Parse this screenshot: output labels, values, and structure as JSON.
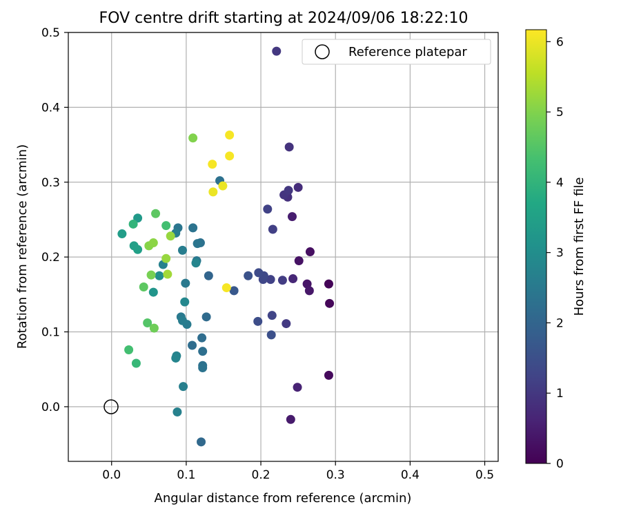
{
  "chart_data": {
    "type": "scatter",
    "title": "FOV centre drift starting at 2024/09/06 18:22:10",
    "xlabel": "Angular distance from reference (arcmin)",
    "ylabel": "Rotation from reference (arcmin)",
    "xlim": [
      -0.058,
      0.518
    ],
    "ylim": [
      -0.073,
      0.5
    ],
    "xticks": [
      0.0,
      0.1,
      0.2,
      0.3,
      0.4,
      0.5
    ],
    "xtick_labels": [
      "0.0",
      "0.1",
      "0.2",
      "0.3",
      "0.4",
      "0.5"
    ],
    "yticks": [
      0.0,
      0.1,
      0.2,
      0.3,
      0.4,
      0.5
    ],
    "ytick_labels": [
      "0.0",
      "0.1",
      "0.2",
      "0.3",
      "0.4",
      "0.5"
    ],
    "grid": true,
    "legend_position": "top-right",
    "legend": [
      {
        "label": "Reference platepar",
        "marker": "open-circle"
      }
    ],
    "reference_point": {
      "x": 0.0,
      "y": 0.0
    },
    "colorbar": {
      "label": "Hours from first FF file",
      "range": [
        0,
        6.17
      ],
      "ticks": [
        0,
        1,
        2,
        3,
        4,
        5,
        6
      ],
      "tick_labels": [
        "0",
        "1",
        "2",
        "3",
        "4",
        "5",
        "6"
      ],
      "colormap": "viridis"
    },
    "points": [
      {
        "x": 0.291,
        "y": 0.164,
        "h": 0.05
      },
      {
        "x": 0.292,
        "y": 0.138,
        "h": 0.1
      },
      {
        "x": 0.291,
        "y": 0.042,
        "h": 0.15
      },
      {
        "x": 0.266,
        "y": 0.207,
        "h": 0.25
      },
      {
        "x": 0.251,
        "y": 0.195,
        "h": 0.3
      },
      {
        "x": 0.262,
        "y": 0.164,
        "h": 0.35
      },
      {
        "x": 0.265,
        "y": 0.155,
        "h": 0.4
      },
      {
        "x": 0.24,
        "y": -0.017,
        "h": 0.45
      },
      {
        "x": 0.242,
        "y": 0.254,
        "h": 0.5
      },
      {
        "x": 0.249,
        "y": 0.026,
        "h": 0.6
      },
      {
        "x": 0.243,
        "y": 0.171,
        "h": 0.7
      },
      {
        "x": 0.25,
        "y": 0.293,
        "h": 0.8
      },
      {
        "x": 0.236,
        "y": 0.28,
        "h": 0.85
      },
      {
        "x": 0.238,
        "y": 0.347,
        "h": 0.9
      },
      {
        "x": 0.231,
        "y": 0.283,
        "h": 0.95
      },
      {
        "x": 0.237,
        "y": 0.289,
        "h": 1.0
      },
      {
        "x": 0.221,
        "y": 0.475,
        "h": 1.0
      },
      {
        "x": 0.234,
        "y": 0.111,
        "h": 1.05
      },
      {
        "x": 0.229,
        "y": 0.169,
        "h": 1.1
      },
      {
        "x": 0.216,
        "y": 0.237,
        "h": 1.15
      },
      {
        "x": 0.213,
        "y": 0.17,
        "h": 1.2
      },
      {
        "x": 0.209,
        "y": 0.264,
        "h": 1.2
      },
      {
        "x": 0.215,
        "y": 0.122,
        "h": 1.25
      },
      {
        "x": 0.203,
        "y": 0.17,
        "h": 1.3
      },
      {
        "x": 0.204,
        "y": 0.175,
        "h": 1.35
      },
      {
        "x": 0.197,
        "y": 0.179,
        "h": 1.4
      },
      {
        "x": 0.196,
        "y": 0.114,
        "h": 1.45
      },
      {
        "x": 0.214,
        "y": 0.096,
        "h": 1.5
      },
      {
        "x": 0.183,
        "y": 0.175,
        "h": 1.55
      },
      {
        "x": 0.164,
        "y": 0.155,
        "h": 1.7
      },
      {
        "x": 0.12,
        "y": -0.047,
        "h": 2.1
      },
      {
        "x": 0.13,
        "y": 0.175,
        "h": 2.0
      },
      {
        "x": 0.127,
        "y": 0.12,
        "h": 2.15
      },
      {
        "x": 0.108,
        "y": 0.082,
        "h": 2.2
      },
      {
        "x": 0.121,
        "y": 0.092,
        "h": 2.2
      },
      {
        "x": 0.122,
        "y": 0.074,
        "h": 2.25
      },
      {
        "x": 0.122,
        "y": 0.055,
        "h": 2.3
      },
      {
        "x": 0.122,
        "y": 0.052,
        "h": 2.35
      },
      {
        "x": 0.145,
        "y": 0.302,
        "h": 2.3
      },
      {
        "x": 0.119,
        "y": 0.219,
        "h": 2.3
      },
      {
        "x": 0.109,
        "y": 0.239,
        "h": 2.35
      },
      {
        "x": 0.115,
        "y": 0.218,
        "h": 2.4
      },
      {
        "x": 0.114,
        "y": 0.195,
        "h": 2.45
      },
      {
        "x": 0.099,
        "y": 0.165,
        "h": 2.5
      },
      {
        "x": 0.101,
        "y": 0.11,
        "h": 2.55
      },
      {
        "x": 0.093,
        "y": 0.12,
        "h": 2.5
      },
      {
        "x": 0.095,
        "y": 0.115,
        "h": 2.6
      },
      {
        "x": 0.096,
        "y": 0.027,
        "h": 2.65
      },
      {
        "x": 0.088,
        "y": -0.007,
        "h": 2.7
      },
      {
        "x": 0.087,
        "y": 0.068,
        "h": 2.75
      },
      {
        "x": 0.086,
        "y": 0.065,
        "h": 2.8
      },
      {
        "x": 0.113,
        "y": 0.192,
        "h": 2.8
      },
      {
        "x": 0.098,
        "y": 0.14,
        "h": 2.85
      },
      {
        "x": 0.095,
        "y": 0.209,
        "h": 2.6
      },
      {
        "x": 0.089,
        "y": 0.239,
        "h": 2.4
      },
      {
        "x": 0.086,
        "y": 0.232,
        "h": 2.6
      },
      {
        "x": 0.069,
        "y": 0.19,
        "h": 2.7
      },
      {
        "x": 0.064,
        "y": 0.175,
        "h": 3.0
      },
      {
        "x": 0.056,
        "y": 0.153,
        "h": 3.2
      },
      {
        "x": 0.035,
        "y": 0.252,
        "h": 3.3
      },
      {
        "x": 0.014,
        "y": 0.231,
        "h": 3.4
      },
      {
        "x": 0.03,
        "y": 0.215,
        "h": 3.45
      },
      {
        "x": 0.035,
        "y": 0.21,
        "h": 3.5
      },
      {
        "x": 0.029,
        "y": 0.244,
        "h": 4.0
      },
      {
        "x": 0.073,
        "y": 0.242,
        "h": 4.3
      },
      {
        "x": 0.059,
        "y": 0.258,
        "h": 4.6
      },
      {
        "x": 0.043,
        "y": 0.16,
        "h": 4.6
      },
      {
        "x": 0.023,
        "y": 0.076,
        "h": 4.3
      },
      {
        "x": 0.033,
        "y": 0.058,
        "h": 4.1
      },
      {
        "x": 0.048,
        "y": 0.112,
        "h": 4.5
      },
      {
        "x": 0.057,
        "y": 0.105,
        "h": 4.8
      },
      {
        "x": 0.053,
        "y": 0.176,
        "h": 4.9
      },
      {
        "x": 0.05,
        "y": 0.215,
        "h": 5.05
      },
      {
        "x": 0.056,
        "y": 0.219,
        "h": 5.1
      },
      {
        "x": 0.079,
        "y": 0.228,
        "h": 5.2
      },
      {
        "x": 0.073,
        "y": 0.198,
        "h": 5.2
      },
      {
        "x": 0.075,
        "y": 0.177,
        "h": 5.3
      },
      {
        "x": 0.109,
        "y": 0.359,
        "h": 5.0
      },
      {
        "x": 0.158,
        "y": 0.363,
        "h": 6.1
      },
      {
        "x": 0.158,
        "y": 0.335,
        "h": 6.1
      },
      {
        "x": 0.135,
        "y": 0.324,
        "h": 6.1
      },
      {
        "x": 0.149,
        "y": 0.295,
        "h": 6.0
      },
      {
        "x": 0.136,
        "y": 0.287,
        "h": 6.0
      },
      {
        "x": 0.154,
        "y": 0.159,
        "h": 6.1
      }
    ]
  }
}
